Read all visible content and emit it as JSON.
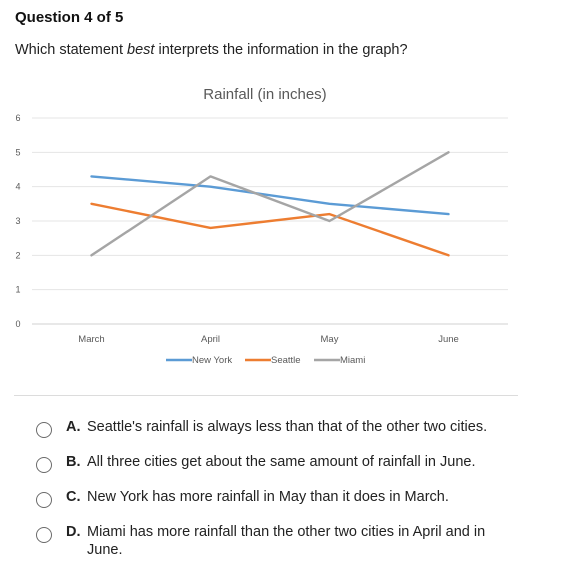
{
  "question": {
    "header": "Question 4 of 5",
    "prompt_before": "Which statement ",
    "prompt_emphasis": "best",
    "prompt_after": " interprets the information in the graph?"
  },
  "chart_data": {
    "type": "line",
    "title": "Rainfall (in inches)",
    "categories": [
      "March",
      "April",
      "May",
      "June"
    ],
    "ylim": [
      0,
      6
    ],
    "yticks": [
      "0",
      "1",
      "2",
      "3",
      "4",
      "5",
      "6"
    ],
    "grid": true,
    "legend_position": "bottom",
    "series": [
      {
        "name": "New York",
        "values": [
          4.3,
          4.0,
          3.5,
          3.2
        ],
        "color": "#5b9bd5"
      },
      {
        "name": "Seattle",
        "values": [
          3.5,
          2.8,
          3.2,
          2.0
        ],
        "color": "#ed7d31"
      },
      {
        "name": "Miami",
        "values": [
          2.0,
          4.3,
          3.0,
          5.0
        ],
        "color": "#a5a5a5"
      }
    ]
  },
  "choices": [
    {
      "letter": "A.",
      "text": "Seattle's rainfall is always less than that of the other two cities."
    },
    {
      "letter": "B.",
      "text": "All three cities get about the same amount of rainfall in June."
    },
    {
      "letter": "C.",
      "text": "New York has more rainfall in May than it does in March."
    },
    {
      "letter": "D.",
      "text": "Miami has more rainfall than the other two cities in April and in June."
    }
  ]
}
